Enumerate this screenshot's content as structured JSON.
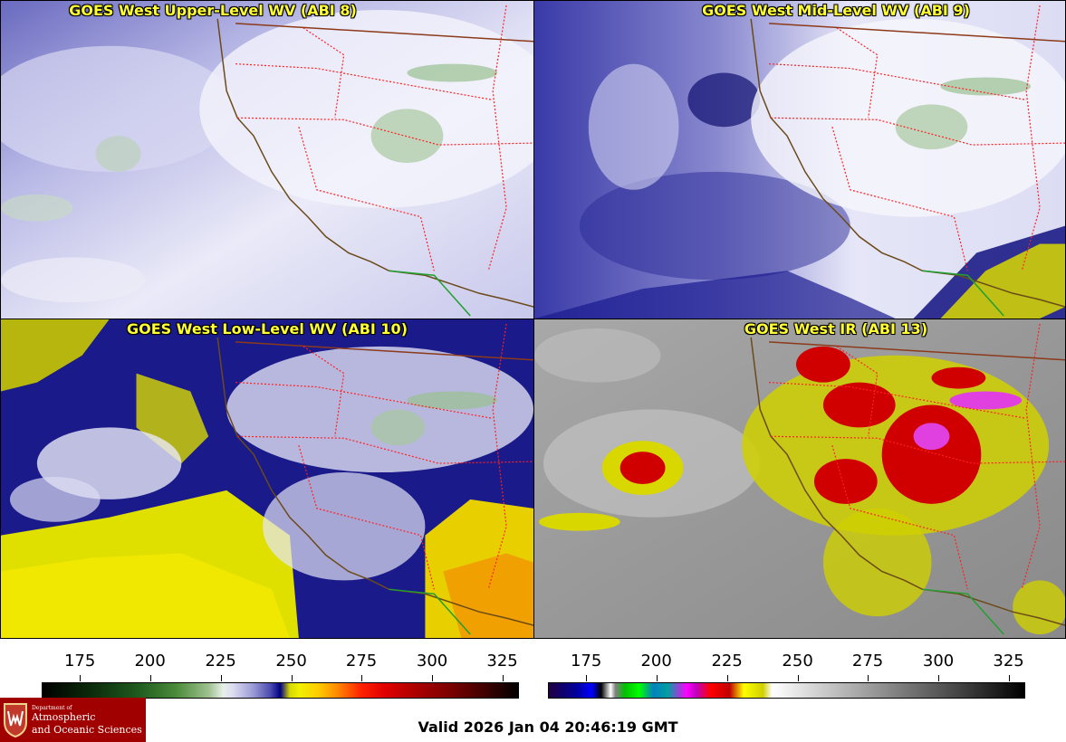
{
  "panels": [
    {
      "title": "GOES West Upper-Level WV (ABI 8)"
    },
    {
      "title": "GOES West Mid-Level WV (ABI 9)"
    },
    {
      "title": "GOES West Low-Level WV (ABI 10)"
    },
    {
      "title": "GOES West IR (ABI 13)"
    }
  ],
  "scales": {
    "wv": {
      "ticks": [
        "175",
        "200",
        "225",
        "250",
        "275",
        "300",
        "325"
      ]
    },
    "ir": {
      "ticks": [
        "175",
        "200",
        "225",
        "250",
        "275",
        "300",
        "325"
      ]
    }
  },
  "logo": {
    "line1": "Department of",
    "line2": "Atmospheric",
    "line3": "and Oceanic Sciences"
  },
  "valid_time": "Valid 2026 Jan 04 20:46:19 GMT",
  "colors": {
    "title_text": "#ffff33",
    "state_borders": "#ff2020",
    "coastline": "#6b4a1a",
    "mexico_border": "#20a030",
    "logo_background": "#a00000"
  }
}
